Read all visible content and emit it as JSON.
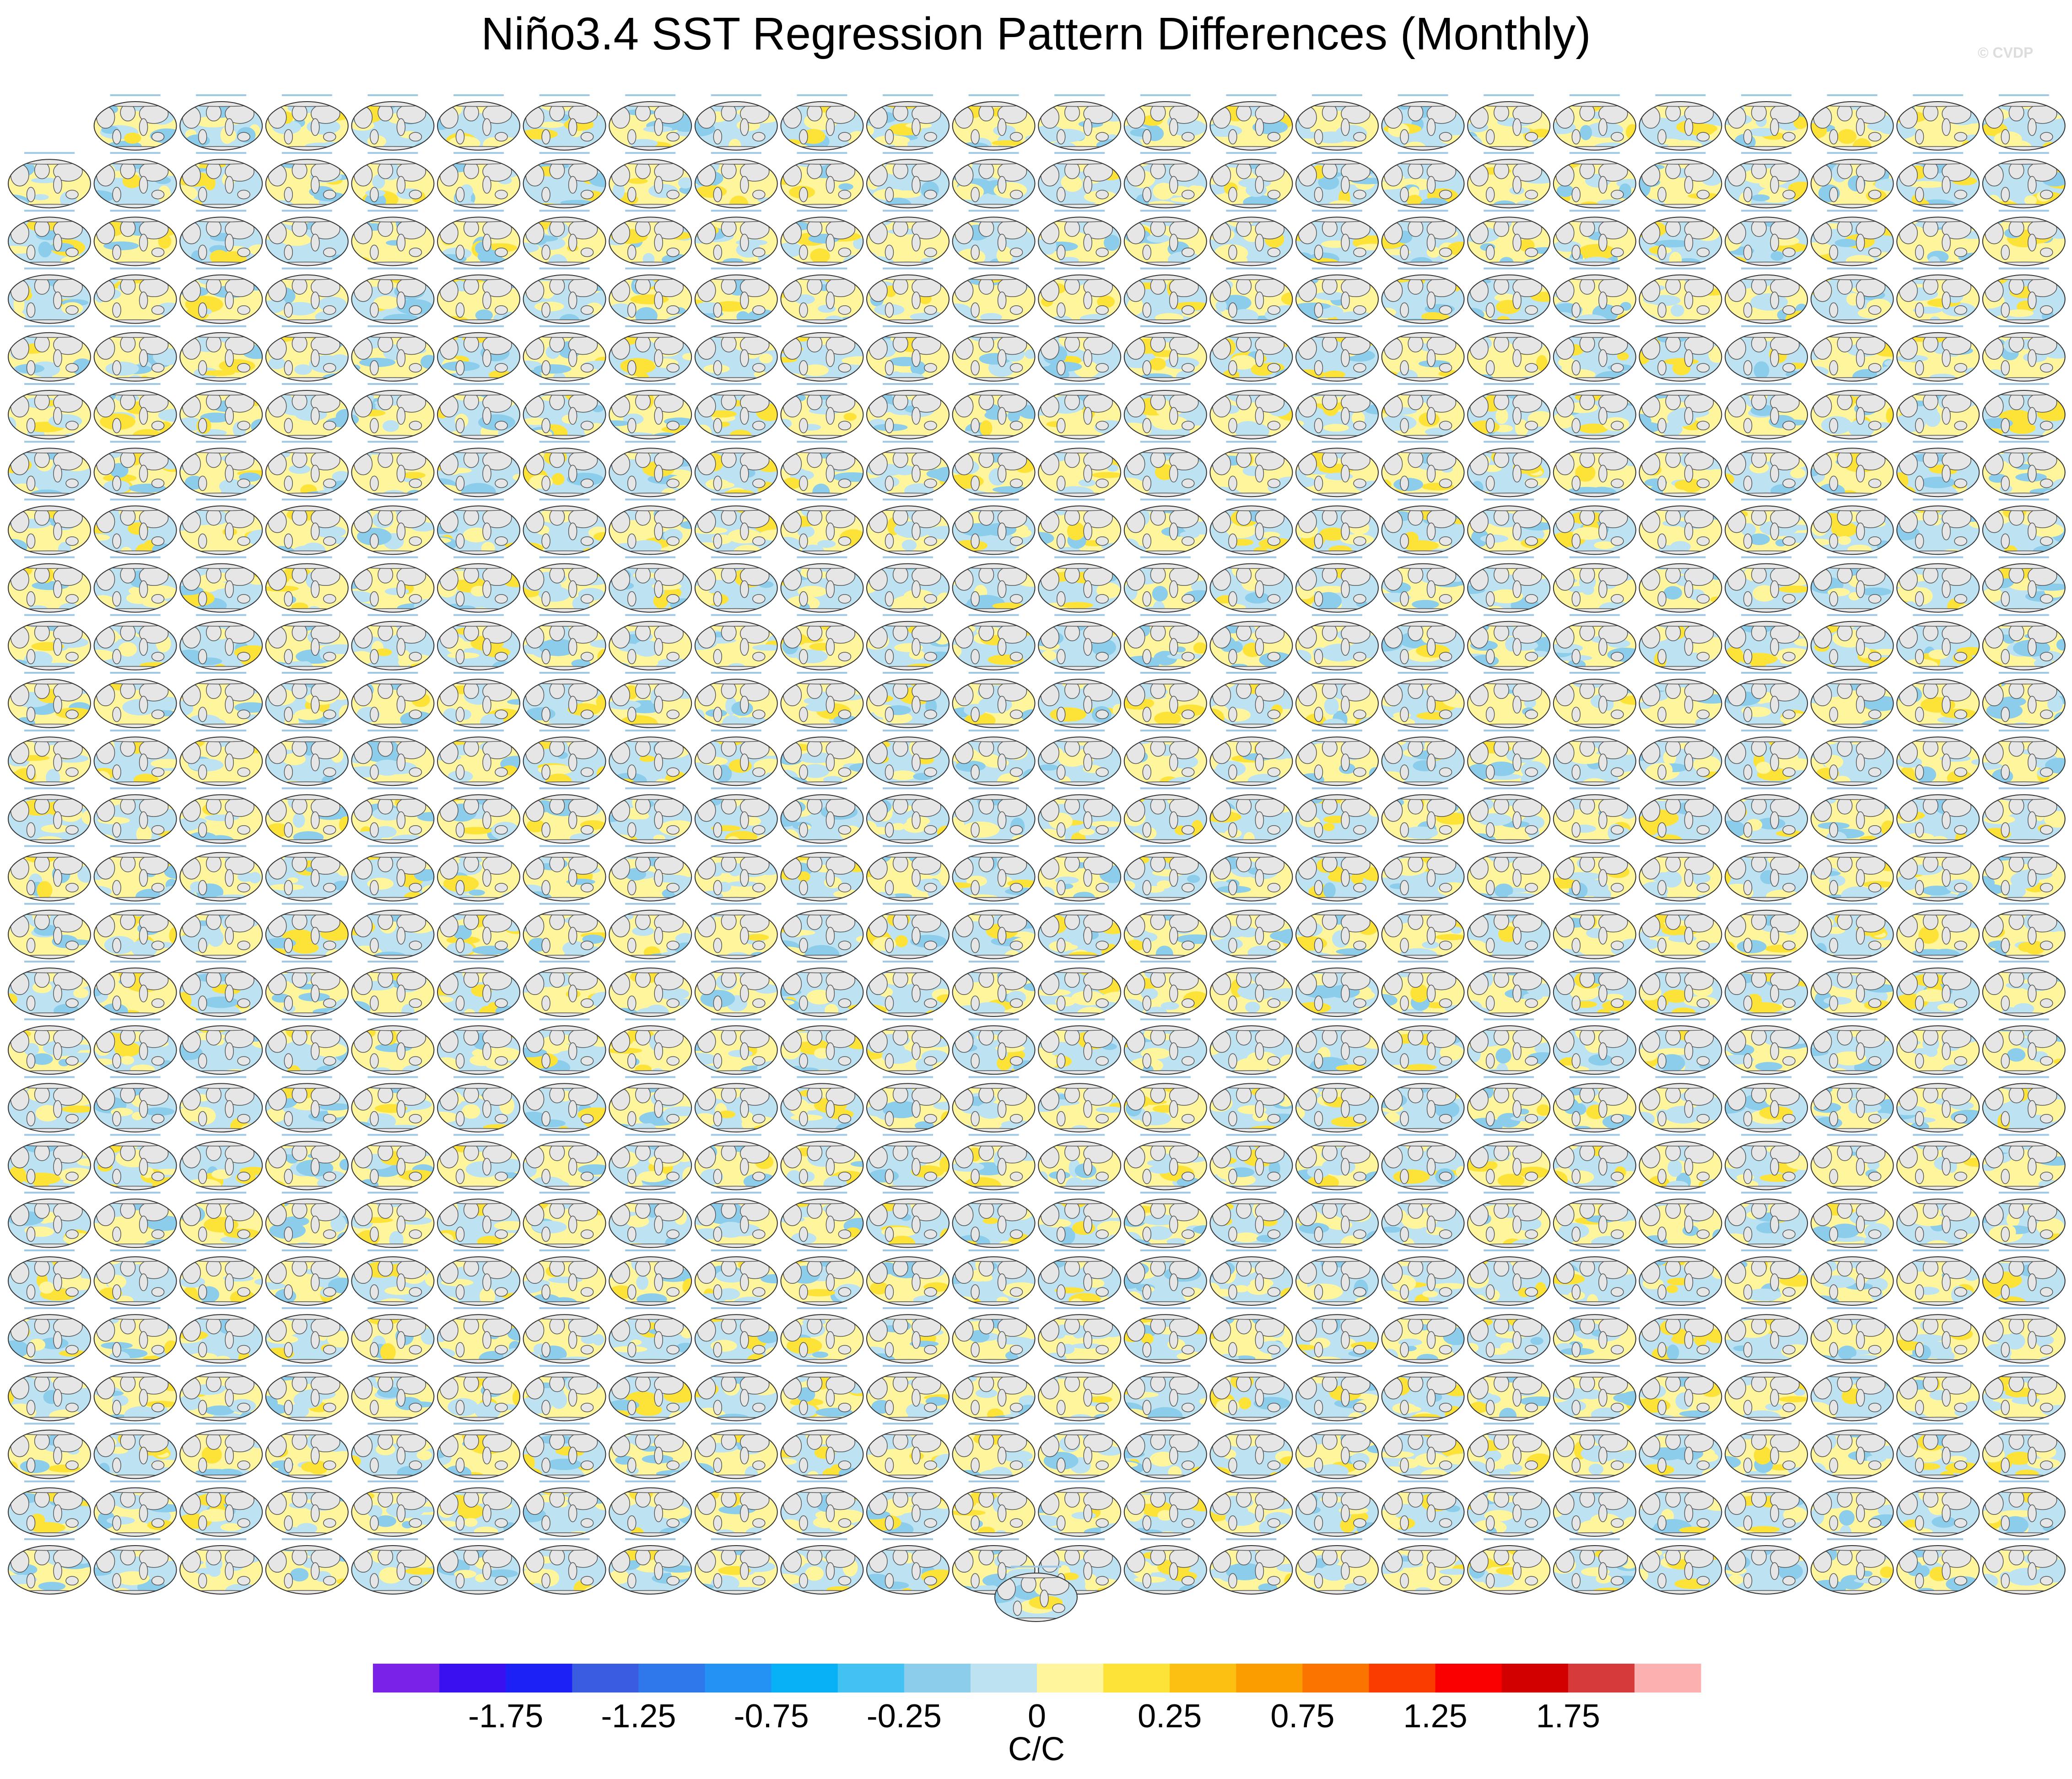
{
  "title": "Niño3.4 SST Regression Pattern Differences (Monthly)",
  "watermark": "© CVDP",
  "chart_data": {
    "type": "heatmap",
    "title": "Niño3.4 SST Regression Pattern Differences (Monthly)",
    "description_of_panels": "Small-multiple global map panels of regression differences, 26 rows × 24 columns (first row starts at column 2) plus one panel centered below",
    "panel_grid": {
      "rows": 26,
      "columns": 24,
      "first_row_start_column": 2,
      "extra_bottom_panels": 1
    },
    "colorbar": {
      "units": "C/C",
      "levels": [
        -2.0,
        -1.75,
        -1.5,
        -1.25,
        -1.0,
        -0.75,
        -0.5,
        -0.25,
        -0.1,
        0,
        0.1,
        0.25,
        0.5,
        0.75,
        1.0,
        1.25,
        1.5,
        1.75,
        2.0
      ],
      "tick_labels": [
        "-1.75",
        "-1.25",
        "-0.75",
        "-0.25",
        "0",
        "0.25",
        "0.75",
        "1.25",
        "1.75"
      ],
      "tick_label_levels": [
        -1.75,
        -1.25,
        -0.75,
        -0.25,
        0,
        0.25,
        0.75,
        1.25,
        1.75
      ],
      "colors": [
        "#7b22e8",
        "#3a10f0",
        "#1c22f5",
        "#3a5ce0",
        "#2f78ec",
        "#2492f5",
        "#08b0f5",
        "#42c2f2",
        "#8ccdec",
        "#bde3f3",
        "#fff59c",
        "#fde238",
        "#fcc012",
        "#fb9c00",
        "#fb7400",
        "#fb3c00",
        "#fa0000",
        "#d30000",
        "#d63a3a",
        "#fdb0b0"
      ]
    }
  }
}
